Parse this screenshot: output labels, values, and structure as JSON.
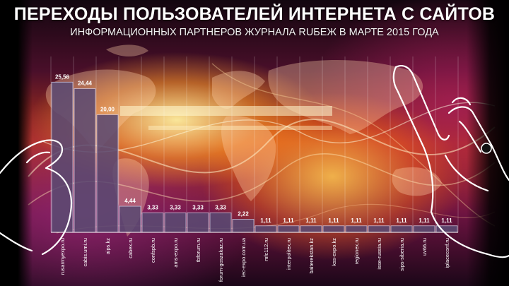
{
  "header": {
    "title": "ПЕРЕХОДЫ ПОЛЬЗОВАТЕЛЕЙ ИНТЕРНЕТА С САЙТОВ",
    "subtitle": "ИНФОРМАЦИОННЫХ ПАРТНЕРОВ ЖУРНАЛА RUБЕЖ В МАРТЕ 2015 ГОДА"
  },
  "colors": {
    "bar_fill": "#5b4a72",
    "bar_stroke": "#c9bfd8"
  },
  "decorations": [
    "world-map",
    "touch-hand-left-icon",
    "touch-hand-right-icon",
    "light-waves"
  ],
  "chart_data": {
    "type": "bar",
    "title": "ПЕРЕХОДЫ ПОЛЬЗОВАТЕЛЕЙ ИНТЕРНЕТА С САЙТОВ",
    "subtitle": "ИНФОРМАЦИОННЫХ ПАРТНЕРОВ ЖУРНАЛА RUБЕЖ В МАРТЕ 2015 ГОДА",
    "categories": [
      "rusarmyexpo.ru",
      "cabis.umi.ru",
      "aips.kz",
      "cabex.ru",
      "confspb.ru",
      "ams-expo.ru",
      "tbforum.ru",
      "forum-goszakaz.ru",
      "iec-expo.com.ua",
      "mfc112.ru",
      "interpolitex.ru",
      "baiterekstan.kz",
      "kss-expo.kz",
      "regionex.ru",
      "isse-russia.ru",
      "sips-siberia.ru",
      "uv66.ru",
      "iplaceconf.ru"
    ],
    "values": [
      25.56,
      24.44,
      20.0,
      4.44,
      3.33,
      3.33,
      3.33,
      3.33,
      2.22,
      1.11,
      1.11,
      1.11,
      1.11,
      1.11,
      1.11,
      1.11,
      1.11,
      1.11
    ],
    "value_labels": [
      "25,56",
      "24,44",
      "20,00",
      "4,44",
      "3,33",
      "3,33",
      "3,33",
      "3,33",
      "2,22",
      "1,11",
      "1,11",
      "1,11",
      "1,11",
      "1,11",
      "1,11",
      "1,11",
      "1,11",
      "1,11"
    ],
    "ylim": [
      0,
      28
    ],
    "xlabel": "",
    "ylabel": "",
    "grid": "vertical",
    "legend": "none"
  }
}
